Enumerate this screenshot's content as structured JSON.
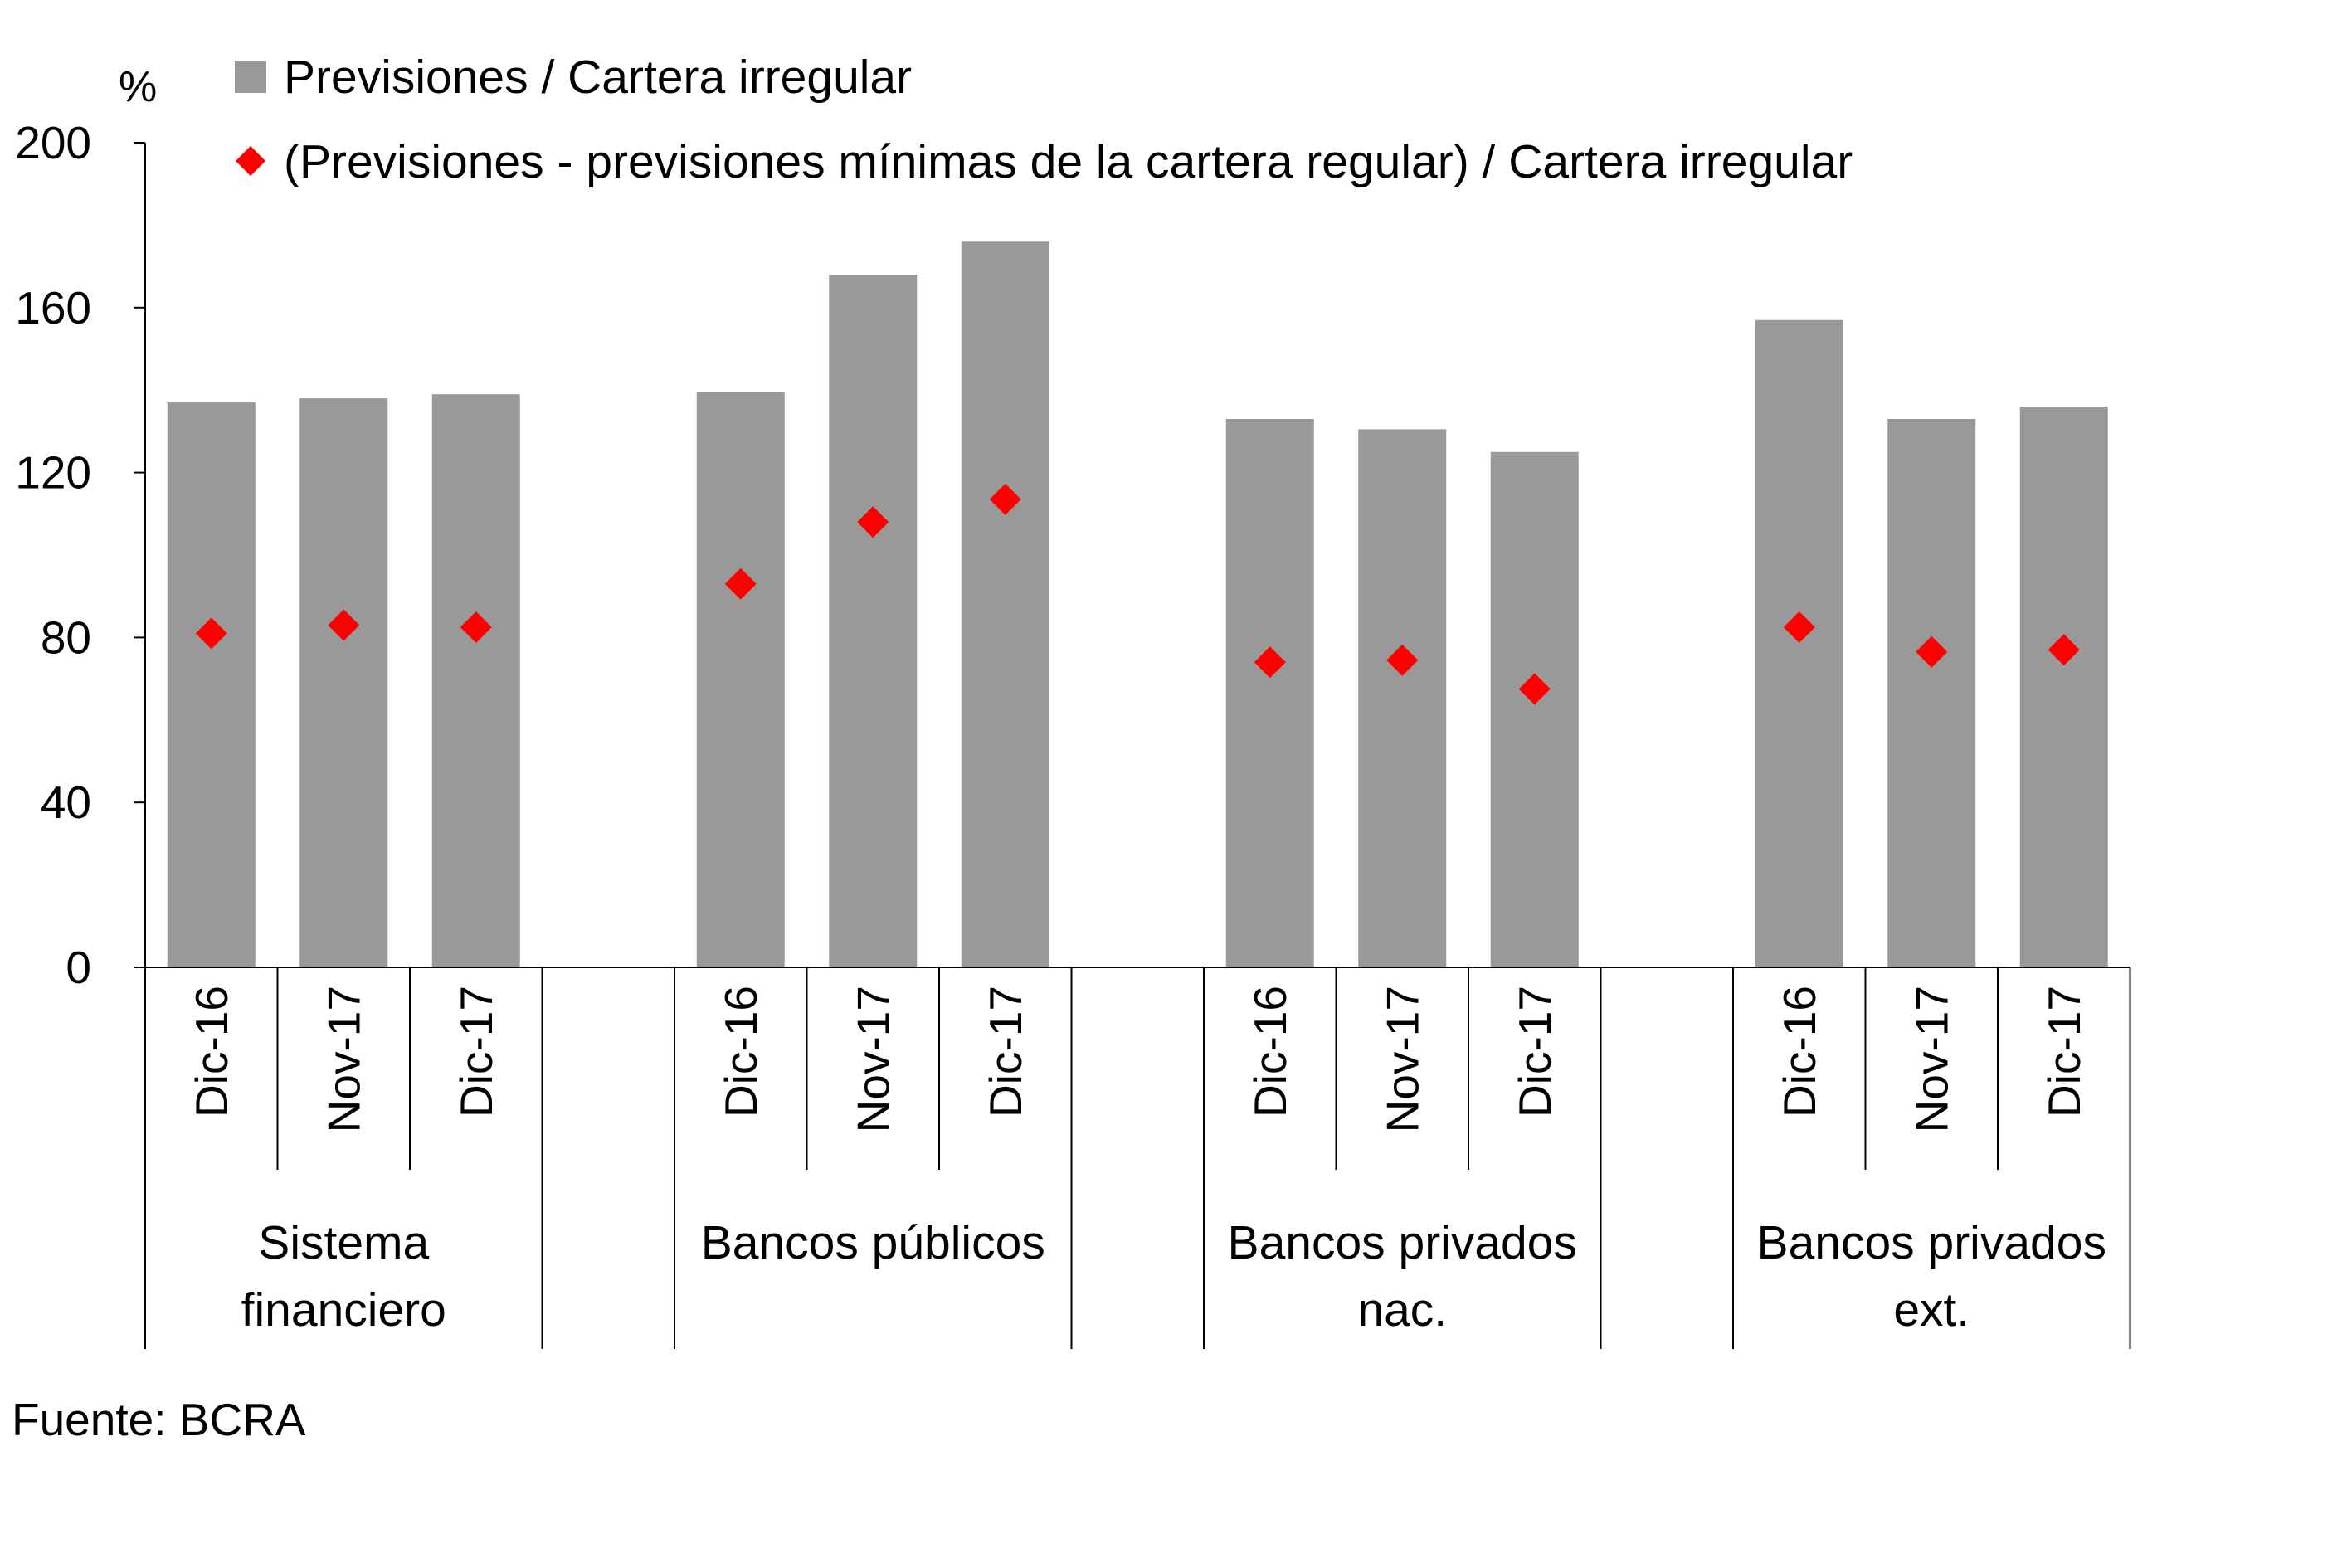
{
  "chart_data": {
    "type": "bar",
    "unit_label": "%",
    "ylim": [
      0,
      200
    ],
    "yticks": [
      "0",
      "40",
      "80",
      "120",
      "160",
      "200"
    ],
    "grid": false,
    "legend_position": "top",
    "groups": [
      {
        "label_lines": [
          "Sistema",
          "financiero"
        ],
        "categories": [
          "Dic-16",
          "Nov-17",
          "Dic-17"
        ]
      },
      {
        "label_lines": [
          "Bancos públicos"
        ],
        "categories": [
          "Dic-16",
          "Nov-17",
          "Dic-17"
        ]
      },
      {
        "label_lines": [
          "Bancos privados",
          "nac."
        ],
        "categories": [
          "Dic-16",
          "Nov-17",
          "Dic-17"
        ]
      },
      {
        "label_lines": [
          "Bancos privados",
          "ext."
        ],
        "categories": [
          "Dic-16",
          "Nov-17",
          "Dic-17"
        ]
      }
    ],
    "series": [
      {
        "name": "Previsiones / Cartera irregular",
        "mark": "bar",
        "color": "#999999",
        "values": [
          137,
          138,
          139,
          139.5,
          168,
          176,
          133,
          130.5,
          125,
          157,
          133,
          136
        ]
      },
      {
        "name": "(Previsiones - previsiones mínimas de la cartera regular) / Cartera irregular",
        "mark": "diamond",
        "color": "#ff0000",
        "values": [
          81,
          83,
          82.5,
          93,
          108,
          113.5,
          74,
          74.5,
          67.5,
          82.5,
          76.5,
          77
        ]
      }
    ]
  },
  "source_note": "Fuente:  BCRA"
}
